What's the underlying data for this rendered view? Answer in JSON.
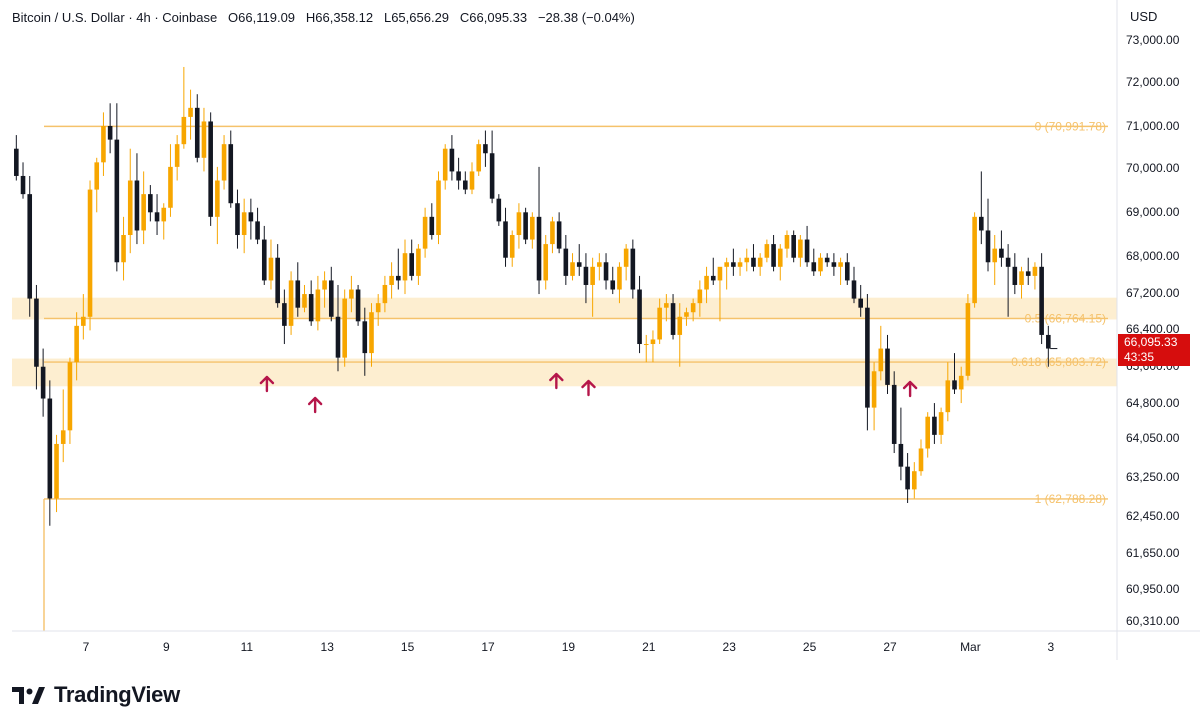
{
  "header": {
    "symbol": "Bitcoin / U.S. Dollar · 4h · Coinbase",
    "open_label": "O",
    "open": "66,119.09",
    "high_label": "H",
    "high": "66,358.12",
    "low_label": "L",
    "low": "65,656.29",
    "close_label": "C",
    "close": "66,095.33",
    "change": "−28.38 (−0.04%)"
  },
  "currency": "USD",
  "price_tag": {
    "price": "66,095.33",
    "countdown": "43:35",
    "color": "#d60d0d"
  },
  "brand": {
    "name": "TradingView"
  },
  "colors": {
    "up": "#f7a600",
    "down": "#131722",
    "fib": "#f5c26b",
    "zone": "#fdebc8",
    "arrow": "#b5164a"
  },
  "chart_data": {
    "type": "candlestick",
    "ylim": [
      60200,
      73500
    ],
    "y_ticks": [
      73000,
      72000,
      71000,
      70000,
      69000,
      68000,
      67200,
      66400,
      65600,
      64800,
      64050,
      63250,
      62450,
      61650,
      60950,
      60310
    ],
    "y_tick_labels": [
      "73,000.00",
      "72,000.00",
      "71,000.00",
      "70,000.00",
      "69,000.00",
      "68,000.00",
      "67,200.00",
      "66,400.00",
      "65,600.00",
      "64,800.00",
      "64,050.00",
      "63,250.00",
      "62,450.00",
      "61,650.00",
      "60,950.00",
      "60,310.00"
    ],
    "x_ticks": [
      {
        "day": 7,
        "label": "7"
      },
      {
        "day": 9,
        "label": "9"
      },
      {
        "day": 11,
        "label": "11"
      },
      {
        "day": 13,
        "label": "13"
      },
      {
        "day": 15,
        "label": "15"
      },
      {
        "day": 17,
        "label": "17"
      },
      {
        "day": 19,
        "label": "19"
      },
      {
        "day": 21,
        "label": "21"
      },
      {
        "day": 23,
        "label": "23"
      },
      {
        "day": 25,
        "label": "25"
      },
      {
        "day": 27,
        "label": "27"
      },
      {
        "day": 29,
        "label": "Mar"
      },
      {
        "day": 31,
        "label": "3"
      }
    ],
    "fib_levels": [
      {
        "value": 70991.78,
        "label": "0 (70,991.78)"
      },
      {
        "value": 66764.15,
        "label": "0.5 (66,764.15)"
      },
      {
        "value": 65803.72,
        "label": "0.618 (65,803.72)"
      },
      {
        "value": 62788.28,
        "label": "1 (62,788.28)"
      }
    ],
    "zones": [
      [
        66740,
        67220
      ],
      [
        65270,
        65880
      ]
    ],
    "arrows": [
      11.5,
      12.7,
      18.7,
      19.5,
      27.5
    ],
    "candle_days_start": 5.1,
    "candle_days_step": 0.1667,
    "candles_key": [
      "o",
      "h",
      "l",
      "c"
    ],
    "candles": [
      [
        70900,
        71200,
        70300,
        70500
      ],
      [
        70500,
        70800,
        69800,
        69900
      ],
      [
        69900,
        70200,
        69400,
        69500
      ],
      [
        69500,
        69900,
        66800,
        67200
      ],
      [
        67200,
        67500,
        65200,
        65700
      ],
      [
        65700,
        66100,
        64600,
        65000
      ],
      [
        65000,
        65400,
        62200,
        62800
      ],
      [
        62800,
        64200,
        62500,
        64000
      ],
      [
        64000,
        65200,
        63600,
        64300
      ],
      [
        64300,
        65900,
        64000,
        65800
      ],
      [
        65800,
        66900,
        65400,
        66600
      ],
      [
        66600,
        67300,
        66300,
        66800
      ],
      [
        66800,
        69800,
        66500,
        69600
      ],
      [
        69600,
        70300,
        69100,
        70200
      ],
      [
        70200,
        71300,
        69900,
        71000
      ],
      [
        71000,
        71500,
        70400,
        70700
      ],
      [
        70700,
        71500,
        67800,
        68000
      ],
      [
        68000,
        69000,
        67600,
        68600
      ],
      [
        68600,
        70500,
        68200,
        69800
      ],
      [
        69800,
        70400,
        68400,
        68700
      ],
      [
        68700,
        70000,
        68400,
        69500
      ],
      [
        69500,
        69700,
        68900,
        69100
      ],
      [
        69100,
        69500,
        68600,
        68900
      ],
      [
        68900,
        69300,
        68500,
        69200
      ],
      [
        69200,
        70600,
        69000,
        70100
      ],
      [
        70100,
        70800,
        69800,
        70600
      ],
      [
        70600,
        72300,
        70500,
        71200
      ],
      [
        71200,
        71800,
        70700,
        71400
      ],
      [
        71400,
        71700,
        70200,
        70300
      ],
      [
        70300,
        71400,
        70000,
        71100
      ],
      [
        71100,
        71300,
        68800,
        69000
      ],
      [
        69000,
        70100,
        68400,
        69800
      ],
      [
        69800,
        70800,
        69600,
        70600
      ],
      [
        70600,
        70900,
        69200,
        69300
      ],
      [
        69300,
        69600,
        68300,
        68600
      ],
      [
        68600,
        69400,
        68200,
        69100
      ],
      [
        69100,
        69400,
        68500,
        68900
      ],
      [
        68900,
        69200,
        68400,
        68500
      ],
      [
        68500,
        68800,
        67500,
        67600
      ],
      [
        67600,
        68500,
        67400,
        68100
      ],
      [
        68100,
        68400,
        67000,
        67100
      ],
      [
        67100,
        67400,
        66200,
        66600
      ],
      [
        66600,
        67800,
        66400,
        67600
      ],
      [
        67600,
        68000,
        66800,
        67000
      ],
      [
        67000,
        67500,
        66900,
        67300
      ],
      [
        67300,
        67600,
        66600,
        66700
      ],
      [
        66700,
        67700,
        66500,
        67400
      ],
      [
        67400,
        67800,
        67000,
        67600
      ],
      [
        67600,
        67900,
        66700,
        66800
      ],
      [
        66800,
        67500,
        65600,
        65900
      ],
      [
        65900,
        67400,
        65700,
        67200
      ],
      [
        67200,
        67700,
        66900,
        67400
      ],
      [
        67400,
        67500,
        66600,
        66700
      ],
      [
        66700,
        67000,
        65500,
        66000
      ],
      [
        66000,
        67100,
        65700,
        66900
      ],
      [
        66900,
        67300,
        66600,
        67100
      ],
      [
        67100,
        67700,
        66900,
        67500
      ],
      [
        67500,
        68000,
        67200,
        67700
      ],
      [
        67700,
        68300,
        67400,
        67600
      ],
      [
        67600,
        68500,
        67300,
        68200
      ],
      [
        68200,
        68500,
        67600,
        67700
      ],
      [
        67700,
        68400,
        67500,
        68300
      ],
      [
        68300,
        69200,
        68100,
        69000
      ],
      [
        69000,
        69300,
        68500,
        68600
      ],
      [
        68600,
        70000,
        68400,
        69800
      ],
      [
        69800,
        70600,
        69600,
        70500
      ],
      [
        70500,
        70800,
        69800,
        70000
      ],
      [
        70000,
        70300,
        69600,
        69800
      ],
      [
        69800,
        70000,
        69500,
        69600
      ],
      [
        69600,
        70200,
        69500,
        70000
      ],
      [
        70000,
        70700,
        69900,
        70600
      ],
      [
        70600,
        70900,
        70100,
        70400
      ],
      [
        70400,
        70900,
        69300,
        69400
      ],
      [
        69400,
        69500,
        68800,
        68900
      ],
      [
        68900,
        69200,
        67900,
        68100
      ],
      [
        68100,
        68700,
        67900,
        68600
      ],
      [
        68600,
        69300,
        68300,
        69100
      ],
      [
        69100,
        69200,
        68400,
        68500
      ],
      [
        68500,
        69100,
        68300,
        69000
      ],
      [
        69000,
        70100,
        67300,
        67600
      ],
      [
        67600,
        68600,
        67400,
        68400
      ],
      [
        68400,
        69000,
        68200,
        68900
      ],
      [
        68900,
        69100,
        68200,
        68300
      ],
      [
        68300,
        68600,
        67500,
        67700
      ],
      [
        67700,
        68200,
        67600,
        68000
      ],
      [
        68000,
        68400,
        67700,
        67900
      ],
      [
        67900,
        68200,
        67100,
        67500
      ],
      [
        67500,
        68100,
        66800,
        67900
      ],
      [
        67900,
        68200,
        67600,
        68000
      ],
      [
        68000,
        68200,
        67400,
        67600
      ],
      [
        67600,
        67900,
        67300,
        67400
      ],
      [
        67400,
        68000,
        67100,
        67900
      ],
      [
        67900,
        68400,
        67600,
        68300
      ],
      [
        68300,
        68500,
        67200,
        67400
      ],
      [
        67400,
        67700,
        66000,
        66200
      ],
      [
        66200,
        66400,
        65800,
        66200
      ],
      [
        66200,
        66500,
        65800,
        66300
      ],
      [
        66300,
        67200,
        66200,
        67000
      ],
      [
        67000,
        67300,
        66700,
        67100
      ],
      [
        67100,
        67300,
        66300,
        66400
      ],
      [
        66400,
        67100,
        65700,
        66800
      ],
      [
        66800,
        67000,
        66600,
        66900
      ],
      [
        66900,
        67200,
        66700,
        67100
      ],
      [
        67100,
        67600,
        66800,
        67400
      ],
      [
        67400,
        67900,
        67100,
        67700
      ],
      [
        67700,
        68100,
        67500,
        67600
      ],
      [
        67600,
        67800,
        66700,
        67900
      ],
      [
        67900,
        68100,
        67400,
        68000
      ],
      [
        68000,
        68300,
        67700,
        67900
      ],
      [
        67900,
        68100,
        67700,
        68000
      ],
      [
        68000,
        68300,
        67800,
        68100
      ],
      [
        68100,
        68400,
        67800,
        67900
      ],
      [
        67900,
        68200,
        67700,
        68100
      ],
      [
        68100,
        68500,
        68000,
        68400
      ],
      [
        68400,
        68600,
        67800,
        67900
      ],
      [
        67900,
        68400,
        67600,
        68300
      ],
      [
        68300,
        68700,
        68100,
        68600
      ],
      [
        68600,
        68700,
        68000,
        68100
      ],
      [
        68100,
        68600,
        67900,
        68500
      ],
      [
        68500,
        68800,
        67900,
        68000
      ],
      [
        68000,
        68300,
        67700,
        67800
      ],
      [
        67800,
        68200,
        67700,
        68100
      ],
      [
        68100,
        68200,
        67900,
        68000
      ],
      [
        68000,
        68200,
        67700,
        67900
      ],
      [
        67900,
        68100,
        67500,
        68000
      ],
      [
        68000,
        68200,
        67500,
        67600
      ],
      [
        67600,
        67900,
        67100,
        67200
      ],
      [
        67200,
        67500,
        66800,
        67000
      ],
      [
        67000,
        67300,
        64300,
        64800
      ],
      [
        64800,
        65800,
        64300,
        65600
      ],
      [
        65600,
        66600,
        65400,
        66100
      ],
      [
        66100,
        66400,
        65100,
        65300
      ],
      [
        65300,
        65600,
        63800,
        64000
      ],
      [
        64000,
        64800,
        63200,
        63500
      ],
      [
        63500,
        63800,
        62700,
        63000
      ],
      [
        63000,
        63600,
        62800,
        63400
      ],
      [
        63400,
        64100,
        63300,
        63900
      ],
      [
        63900,
        64700,
        63700,
        64600
      ],
      [
        64600,
        64900,
        64000,
        64200
      ],
      [
        64200,
        64800,
        64000,
        64700
      ],
      [
        64700,
        65800,
        64500,
        65400
      ],
      [
        65400,
        66000,
        65100,
        65200
      ],
      [
        65200,
        65700,
        64900,
        65500
      ],
      [
        65500,
        67300,
        65400,
        67100
      ],
      [
        67100,
        69100,
        67000,
        69000
      ],
      [
        69000,
        70000,
        68400,
        68700
      ],
      [
        68700,
        69400,
        67800,
        68000
      ],
      [
        68000,
        68600,
        67500,
        68300
      ],
      [
        68300,
        68700,
        67900,
        68100
      ],
      [
        68100,
        68400,
        66800,
        67900
      ],
      [
        67900,
        68200,
        67300,
        67500
      ],
      [
        67500,
        67900,
        67200,
        67800
      ],
      [
        67800,
        68100,
        67500,
        67700
      ],
      [
        67700,
        68000,
        67400,
        67900
      ],
      [
        67900,
        68200,
        66200,
        66400
      ],
      [
        66400,
        66600,
        65700,
        66100
      ]
    ]
  }
}
